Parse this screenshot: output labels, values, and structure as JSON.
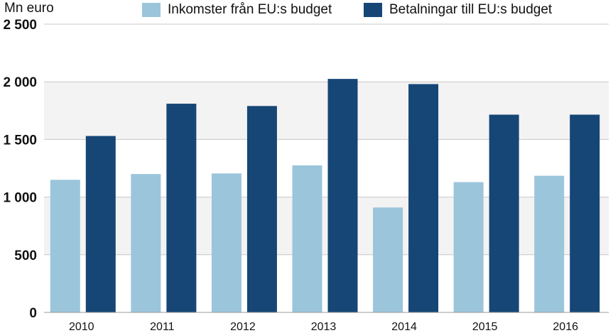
{
  "chart_data": {
    "type": "bar",
    "ylabel": "Mn euro",
    "categories": [
      "2010",
      "2011",
      "2012",
      "2013",
      "2014",
      "2015",
      "2016"
    ],
    "series": [
      {
        "name": "Inkomster från EU:s budget",
        "color": "#9bc5db",
        "values": [
          1150,
          1200,
          1205,
          1275,
          910,
          1130,
          1185
        ]
      },
      {
        "name": "Betalningar till EU:s budget",
        "color": "#154676",
        "values": [
          1530,
          1810,
          1790,
          2025,
          1980,
          1715,
          1715
        ]
      }
    ],
    "ylim": [
      0,
      2500
    ],
    "yticks": [
      0,
      500,
      1000,
      1500,
      2000,
      2500
    ],
    "ytick_labels": [
      "0",
      "500",
      "1 000",
      "1 500",
      "2 000",
      "2 500"
    ],
    "grid": true,
    "legend": "top",
    "colors": {
      "band": "#f3f3f3",
      "grid": "#c8c8c8"
    }
  }
}
